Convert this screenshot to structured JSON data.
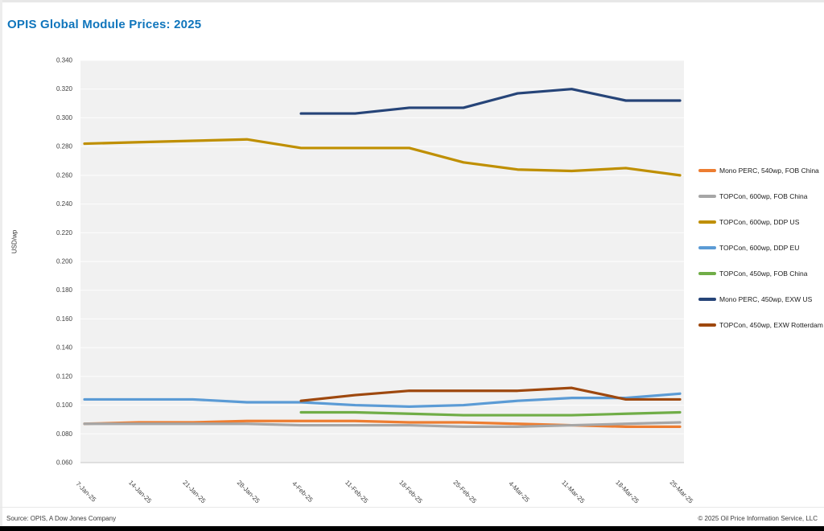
{
  "title": "OPIS Global Module Prices: 2025",
  "accent_color": "#0F75BC",
  "footer": {
    "source": "Source: OPIS, A Dow Jones Company",
    "copyright": "© 2025 Oil Price Information Service, LLC"
  },
  "chart_data": {
    "type": "line",
    "title": "OPIS Global Module Prices: 2025",
    "xlabel": "",
    "ylabel": "USD/wp",
    "ylim": [
      0.06,
      0.34
    ],
    "ytick_step": 0.02,
    "grid": true,
    "legend_position": "right",
    "x_tick_rotation": 45,
    "plot_background": "#f1f1f1",
    "gridline_color": "#ffffff",
    "categories": [
      "7-Jan-25",
      "14-Jan-25",
      "21-Jan-25",
      "28-Jan-25",
      "4-Feb-25",
      "11-Feb-25",
      "18-Feb-25",
      "25-Feb-25",
      "4-Mar-25",
      "11-Mar-25",
      "18-Mar-25",
      "25-Mar-25"
    ],
    "series": [
      {
        "name": "Mono PERC, 540wp, FOB China",
        "color": "#ED7D31",
        "values": [
          0.087,
          0.088,
          0.088,
          0.089,
          0.089,
          0.089,
          0.088,
          0.088,
          0.087,
          0.086,
          0.085,
          0.085
        ]
      },
      {
        "name": "TOPCon, 600wp, FOB China",
        "color": "#A6A6A6",
        "values": [
          0.087,
          0.087,
          0.087,
          0.087,
          0.086,
          0.086,
          0.086,
          0.085,
          0.085,
          0.086,
          0.087,
          0.088
        ]
      },
      {
        "name": "TOPCon, 600wp, DDP US",
        "color": "#BF8F00",
        "values": [
          0.282,
          0.283,
          0.284,
          0.285,
          0.279,
          0.279,
          0.279,
          0.269,
          0.264,
          0.263,
          0.265,
          0.26
        ]
      },
      {
        "name": "TOPCon, 600wp, DDP EU",
        "color": "#5B9BD5",
        "values": [
          0.104,
          0.104,
          0.104,
          0.102,
          0.102,
          0.1,
          0.099,
          0.1,
          0.103,
          0.105,
          0.105,
          0.108
        ]
      },
      {
        "name": "TOPCon, 450wp, FOB China",
        "color": "#70AD47",
        "values": [
          null,
          null,
          null,
          null,
          0.095,
          0.095,
          0.094,
          0.093,
          0.093,
          0.093,
          0.094,
          0.095
        ]
      },
      {
        "name": "Mono PERC, 450wp, EXW US",
        "color": "#264478",
        "values": [
          null,
          null,
          null,
          null,
          0.303,
          0.303,
          0.307,
          0.307,
          0.317,
          0.32,
          0.312,
          0.312
        ]
      },
      {
        "name": "TOPCon, 450wp, EXW Rotterdam",
        "color": "#9E480E",
        "values": [
          null,
          null,
          null,
          null,
          0.103,
          0.107,
          0.11,
          0.11,
          0.11,
          0.112,
          0.104,
          0.104
        ]
      }
    ]
  }
}
